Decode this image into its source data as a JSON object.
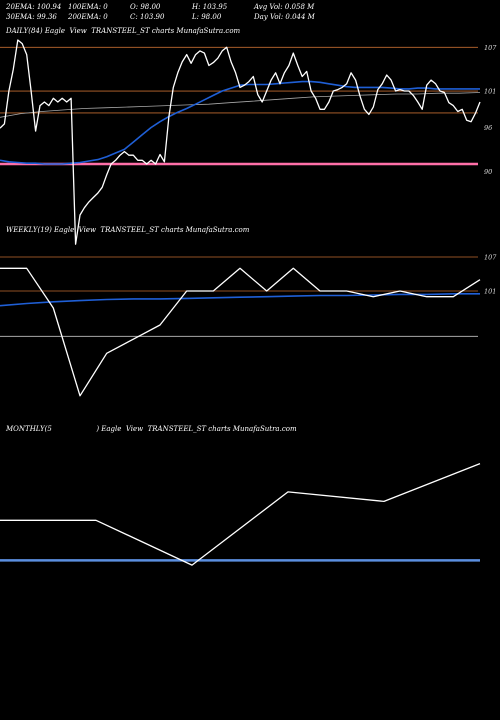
{
  "header": {
    "row1": [
      "20EMA: 100.94",
      "100EMA: 0",
      "O: 98.00",
      "H: 103.95",
      "Avg Vol: 0.058  M"
    ],
    "row2": [
      "30EMA: 99.36",
      "200EMA: 0",
      "C: 103.90",
      "L: 98.00",
      "Day Vol: 0.044  M"
    ]
  },
  "panels": {
    "daily_title": "DAILY(84) Eagle  View  TRANSTEEL_ST charts MunafaSutra.com",
    "weekly_title": "WEEKLY(19) Eagle  View  TRANSTEEL_ST charts MunafaSutra.com",
    "monthly_title": "MONTHLY(5                    ) Eagle  View  TRANSTEEL_ST charts MunafaSutra.com"
  },
  "colors": {
    "background": "#000000",
    "price": "#ffffff",
    "ema": "#1f5fd6",
    "slow_ema": "#a8a8a8",
    "level": "#c06a30",
    "support": "#ff6fa8",
    "monthly_ema": "#5b8fe0"
  },
  "chart_data": [
    {
      "type": "line",
      "name": "daily",
      "ylim": [
        84,
        108
      ],
      "yticks": [
        107,
        101,
        96,
        90
      ],
      "levels": [
        107,
        101,
        98
      ],
      "support": 91,
      "series": [
        {
          "role": "price",
          "values": [
            95.9,
            96.5,
            101,
            104,
            108,
            107.5,
            106,
            101,
            95.5,
            99,
            99.5,
            99,
            100,
            99.5,
            100,
            99.5,
            100,
            80,
            84,
            85,
            85.8,
            86.4,
            87,
            87.8,
            89.5,
            91,
            91.5,
            92.2,
            92.7,
            92.2,
            92.2,
            91.5,
            91.5,
            91,
            91.5,
            91,
            92.3,
            91.3,
            97.5,
            101.5,
            103.5,
            105,
            106,
            104.8,
            106,
            106.5,
            106.2,
            104.5,
            104.9,
            105.5,
            106.5,
            107,
            105,
            103.5,
            101.5,
            101.8,
            102.3,
            103,
            100.5,
            99.5,
            101,
            102.5,
            103.5,
            102,
            103.5,
            104.5,
            106.2,
            104.5,
            103,
            103.7,
            101,
            100,
            98.5,
            98.5,
            99.5,
            101,
            101.2,
            101.5,
            102,
            103.5,
            102.5,
            100.3,
            98.5,
            97.8,
            98.8,
            101.2,
            102,
            103.2,
            102.5,
            101,
            101.2,
            101,
            101,
            100.4,
            99.5,
            98.5,
            101.8,
            102.5,
            102,
            101,
            100.8,
            99.4,
            99,
            98.2,
            98.5,
            97,
            96.8,
            98,
            99.5
          ]
        },
        {
          "role": "ema",
          "values": [
            91.5,
            91.3,
            91.2,
            91.1,
            91.1,
            91,
            91,
            91,
            91.1,
            91.2,
            91.4,
            91.6,
            92,
            92.5,
            93,
            94,
            95,
            96,
            96.8,
            97.5,
            98.1,
            98.6,
            99.2,
            99.8,
            100.4,
            101,
            101.4,
            101.8,
            101.9,
            101.9,
            101.9,
            102,
            102.1,
            102.2,
            102.3,
            102.3,
            102.2,
            102,
            101.8,
            101.6,
            101.5,
            101.5,
            101.5,
            101.5,
            101.4,
            101.3,
            101.3,
            101.4,
            101.4,
            101.3,
            101.3,
            101.3,
            101.3,
            101.3,
            101.3
          ]
        },
        {
          "role": "slow_ema",
          "values": [
            97.4,
            97.9,
            98.2,
            98.4,
            98.6,
            98.7,
            98.8,
            98.9,
            99,
            99.1,
            99.2,
            99.4,
            99.6,
            99.8,
            100,
            100.2,
            100.3,
            100.4,
            100.5,
            100.6,
            100.6,
            100.7,
            100.7,
            100.8
          ]
        }
      ]
    },
    {
      "type": "line",
      "name": "weekly",
      "ylim": [
        80,
        110
      ],
      "yticks": [
        107,
        101
      ],
      "levels": [
        107,
        101
      ],
      "support": 93,
      "series": [
        {
          "role": "price",
          "values": [
            105,
            105,
            98,
            82.5,
            90,
            92.5,
            95,
            101,
            101,
            105,
            101,
            105,
            101,
            101,
            100,
            101,
            100,
            100,
            103
          ]
        },
        {
          "role": "ema",
          "values": [
            98.4,
            98.8,
            99.1,
            99.3,
            99.5,
            99.6,
            99.6,
            99.7,
            99.8,
            99.9,
            100,
            100.1,
            100.2,
            100.2,
            100.3,
            100.4,
            100.4,
            100.5,
            100.5
          ]
        }
      ]
    },
    {
      "type": "line",
      "name": "monthly",
      "ylim": [
        82,
        118
      ],
      "series": [
        {
          "role": "price",
          "values": [
            101,
            101,
            91.5,
            107,
            105,
            113
          ]
        },
        {
          "role": "ema",
          "values": [
            92.5,
            92.5,
            92.5,
            92.5,
            92.5,
            92.5
          ]
        }
      ]
    }
  ]
}
